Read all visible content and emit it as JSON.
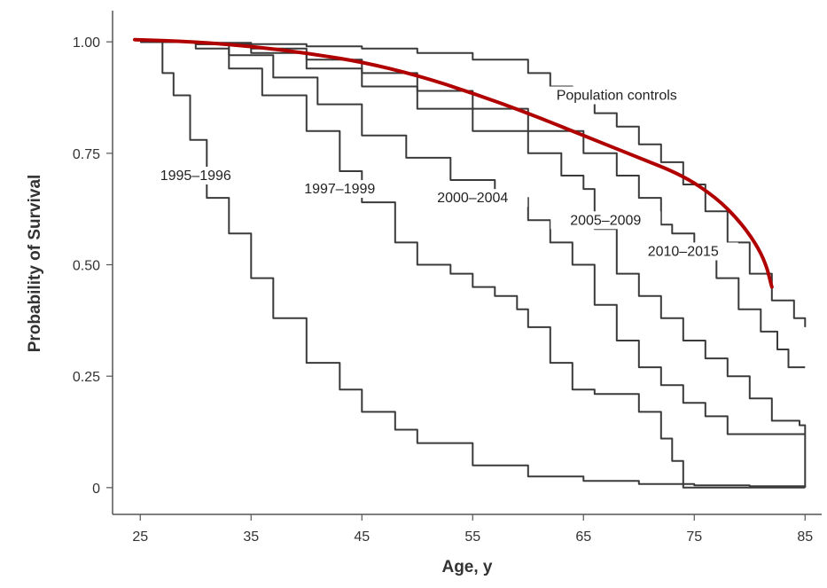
{
  "chart_data": {
    "type": "line",
    "xlabel": "Age, y",
    "ylabel": "Probability of Survival",
    "xlim": [
      22.5,
      86.5
    ],
    "ylim": [
      -0.06,
      1.07
    ],
    "x_ticks": [
      {
        "value": 25,
        "label": "25"
      },
      {
        "value": 35,
        "label": "35"
      },
      {
        "value": 45,
        "label": "45"
      },
      {
        "value": 55,
        "label": "55"
      },
      {
        "value": 65,
        "label": "65"
      },
      {
        "value": 75,
        "label": "75"
      },
      {
        "value": 85,
        "label": "85"
      }
    ],
    "y_ticks": [
      {
        "value": 1.0,
        "label": "1.00"
      },
      {
        "value": 0.75,
        "label": "0.75"
      },
      {
        "value": 0.5,
        "label": "0.50"
      },
      {
        "value": 0.25,
        "label": "0.25"
      },
      {
        "value": 0.0,
        "label": "0"
      }
    ],
    "grid": false,
    "line_color": "#3a3a3a",
    "series": [
      {
        "name": "1995–1996",
        "label_pos": [
          30,
          0.69
        ],
        "x": [
          25,
          27,
          28,
          29.5,
          31,
          33,
          35,
          37,
          40,
          43,
          45,
          48,
          50,
          55,
          60,
          65,
          70,
          75,
          80,
          85
        ],
        "y": [
          1.0,
          0.93,
          0.88,
          0.78,
          0.65,
          0.57,
          0.47,
          0.38,
          0.28,
          0.22,
          0.17,
          0.13,
          0.1,
          0.05,
          0.025,
          0.015,
          0.008,
          0.005,
          0.003,
          0.002
        ]
      },
      {
        "name": "1997–1999",
        "label_pos": [
          43,
          0.66
        ],
        "x": [
          25,
          30,
          33,
          36,
          40,
          43,
          45,
          48,
          50,
          53,
          55,
          57,
          59,
          60,
          62,
          64,
          66,
          70,
          72,
          73,
          74,
          75,
          80,
          85
        ],
        "y": [
          1.0,
          0.985,
          0.94,
          0.88,
          0.8,
          0.71,
          0.64,
          0.55,
          0.5,
          0.48,
          0.45,
          0.43,
          0.4,
          0.36,
          0.28,
          0.22,
          0.21,
          0.17,
          0.11,
          0.06,
          0.0,
          0.0,
          0.0,
          0.0
        ]
      },
      {
        "name": "2000–2004",
        "label_pos": [
          55,
          0.64
        ],
        "x": [
          25,
          30,
          33,
          37,
          41,
          45,
          49,
          53,
          57,
          60,
          62,
          64,
          66,
          68,
          70,
          72,
          74,
          76,
          78,
          82,
          85
        ],
        "y": [
          1.0,
          0.995,
          0.97,
          0.92,
          0.86,
          0.79,
          0.74,
          0.69,
          0.65,
          0.6,
          0.55,
          0.5,
          0.41,
          0.33,
          0.27,
          0.23,
          0.19,
          0.16,
          0.12,
          0.12,
          0.12
        ]
      },
      {
        "name": "2005–2009",
        "label_pos": [
          67,
          0.59
        ],
        "x": [
          25,
          30,
          35,
          40,
          45,
          50,
          55,
          60,
          63,
          65,
          66,
          68,
          70,
          72,
          74,
          76,
          78,
          80,
          82,
          84.5,
          85
        ],
        "y": [
          1.0,
          0.995,
          0.975,
          0.94,
          0.9,
          0.85,
          0.8,
          0.75,
          0.7,
          0.67,
          0.58,
          0.48,
          0.43,
          0.38,
          0.33,
          0.29,
          0.25,
          0.2,
          0.15,
          0.14,
          0.0
        ]
      },
      {
        "name": "2010–2015",
        "label_pos": [
          74,
          0.52
        ],
        "x": [
          25,
          30,
          35,
          40,
          45,
          50,
          55,
          60,
          65,
          68,
          70,
          72,
          73,
          75,
          77,
          79,
          81,
          82.5,
          83.5,
          85
        ],
        "y": [
          1.0,
          0.995,
          0.985,
          0.96,
          0.93,
          0.89,
          0.85,
          0.8,
          0.75,
          0.7,
          0.65,
          0.59,
          0.57,
          0.52,
          0.47,
          0.4,
          0.35,
          0.31,
          0.27,
          0.27
        ]
      },
      {
        "name": "Population controls",
        "label_pos": [
          68,
          0.87
        ],
        "x": [
          25,
          30,
          35,
          40,
          45,
          50,
          55,
          60,
          62,
          64,
          66,
          68,
          70,
          72,
          74,
          76,
          78,
          80,
          82,
          84,
          85
        ],
        "y": [
          1.0,
          0.998,
          0.995,
          0.99,
          0.985,
          0.975,
          0.96,
          0.93,
          0.9,
          0.87,
          0.84,
          0.81,
          0.77,
          0.73,
          0.68,
          0.62,
          0.55,
          0.48,
          0.42,
          0.38,
          0.36
        ]
      }
    ],
    "overlay": {
      "color": "#b00000",
      "x": [
        24.5,
        30,
        35,
        40,
        45,
        50,
        55,
        60,
        65,
        70,
        74,
        77,
        79,
        80.5,
        81.5,
        82
      ],
      "y": [
        1.005,
        1.0,
        0.99,
        0.975,
        0.955,
        0.925,
        0.885,
        0.84,
        0.79,
        0.74,
        0.7,
        0.65,
        0.6,
        0.55,
        0.5,
        0.45
      ]
    }
  }
}
